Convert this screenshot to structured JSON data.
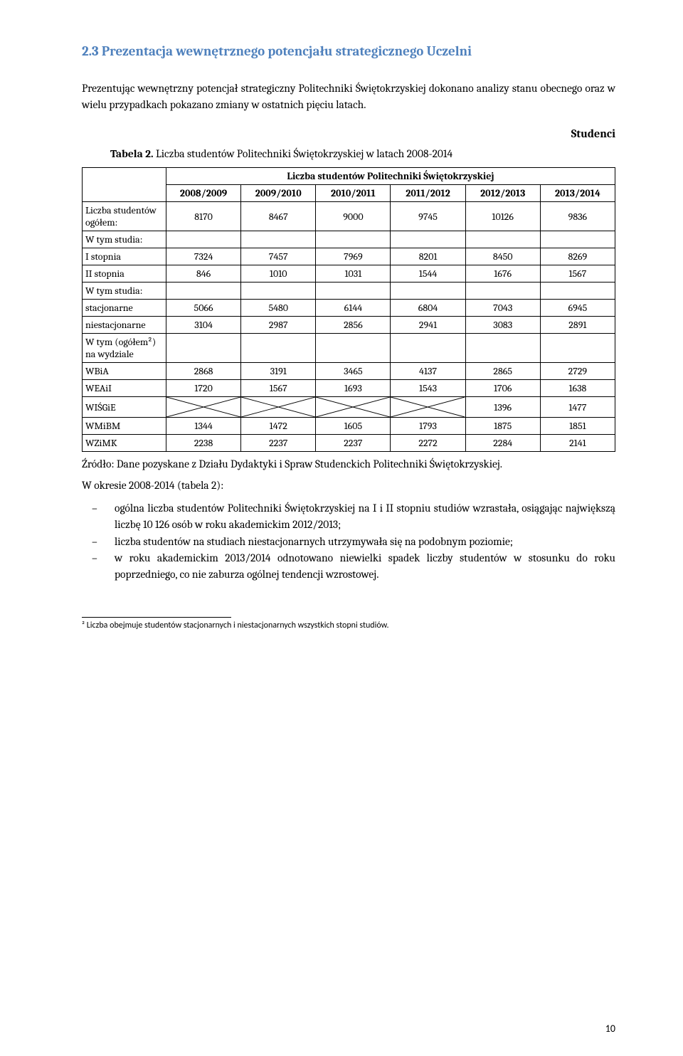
{
  "heading": "2.3 Prezentacja wewnętrznego potencjału strategicznego Uczelni",
  "intro": "Prezentując wewnętrzny potencjał strategiczny Politechniki Świętokrzyskiej dokonano analizy stanu obecnego oraz w wielu przypadkach pokazano zmiany w ostatnich pięciu latach.",
  "subtitle": "Studenci",
  "tableCaption": "Tabela 2. Liczba studentów Politechniki Świętokrzyskiej w latach 2008-2014",
  "captionBold": "Tabela 2.",
  "captionRest": " Liczba studentów Politechniki Świętokrzyskiej w latach 2008-2014",
  "table": {
    "superHeader": "Liczba studentów Politechniki Świętokrzyskiej",
    "years": [
      "2008/2009",
      "2009/2010",
      "2010/2011",
      "2011/2012",
      "2012/2013",
      "2013/2014"
    ],
    "rows": [
      {
        "label": "Liczba studentów ogółem:",
        "values": [
          "8170",
          "8467",
          "9000",
          "9745",
          "10126",
          "9836"
        ]
      },
      {
        "label": "W tym studia:",
        "values": [
          "",
          "",
          "",
          "",
          "",
          ""
        ],
        "empty": true
      },
      {
        "label": "I stopnia",
        "values": [
          "7324",
          "7457",
          "7969",
          "8201",
          "8450",
          "8269"
        ]
      },
      {
        "label": "II stopnia",
        "values": [
          "846",
          "1010",
          "1031",
          "1544",
          "1676",
          "1567"
        ]
      },
      {
        "label": "W tym studia:",
        "values": [
          "",
          "",
          "",
          "",
          "",
          ""
        ],
        "empty": true
      },
      {
        "label": "stacjonarne",
        "values": [
          "5066",
          "5480",
          "6144",
          "6804",
          "7043",
          "6945"
        ]
      },
      {
        "label": "niestacjonarne",
        "values": [
          "3104",
          "2987",
          "2856",
          "2941",
          "3083",
          "2891"
        ]
      },
      {
        "label": "W tym (ogółem²) na wydziale",
        "values": [
          "",
          "",
          "",
          "",
          "",
          ""
        ],
        "empty": true
      },
      {
        "label": "WBiA",
        "values": [
          "2868",
          "3191",
          "3465",
          "4137",
          "2865",
          "2729"
        ]
      },
      {
        "label": "WEAiI",
        "values": [
          "1720",
          "1567",
          "1693",
          "1543",
          "1706",
          "1638"
        ]
      },
      {
        "label": "WIŚGiE",
        "values": [
          "",
          "",
          "",
          "",
          "1396",
          "1477"
        ],
        "crossedCount": 4
      },
      {
        "label": "WMiBM",
        "values": [
          "1344",
          "1472",
          "1605",
          "1793",
          "1875",
          "1851"
        ]
      },
      {
        "label": "WZiMK",
        "values": [
          "2238",
          "2237",
          "2237",
          "2272",
          "2284",
          "2141"
        ]
      }
    ],
    "col_first_width": 118
  },
  "source": "Źródło: Dane pozyskane z Działu Dydaktyki i Spraw Studenckich Politechniki Świętokrzyskiej.",
  "followup": "W okresie 2008-2014 (tabela 2):",
  "bullets": [
    "ogólna liczba studentów Politechniki Świętokrzyskiej na I i II stopniu studiów wzrastała, osiągając największą liczbę 10 126 osób w roku akademickim 2012/2013;",
    "liczba studentów na studiach niestacjonarnych utrzymywała się na podobnym poziomie;",
    "w roku akademickim 2013/2014 odnotowano niewielki spadek liczby studentów w stosunku do roku poprzedniego, co nie zaburza ogólnej tendencji wzrostowej."
  ],
  "footnote": "² Liczba obejmuje studentów stacjonarnych i niestacjonarnych wszystkich stopni studiów.",
  "pageNumber": "10",
  "colors": {
    "heading": "#4f81bd",
    "text": "#000000",
    "border": "#000000",
    "background": "#ffffff"
  }
}
